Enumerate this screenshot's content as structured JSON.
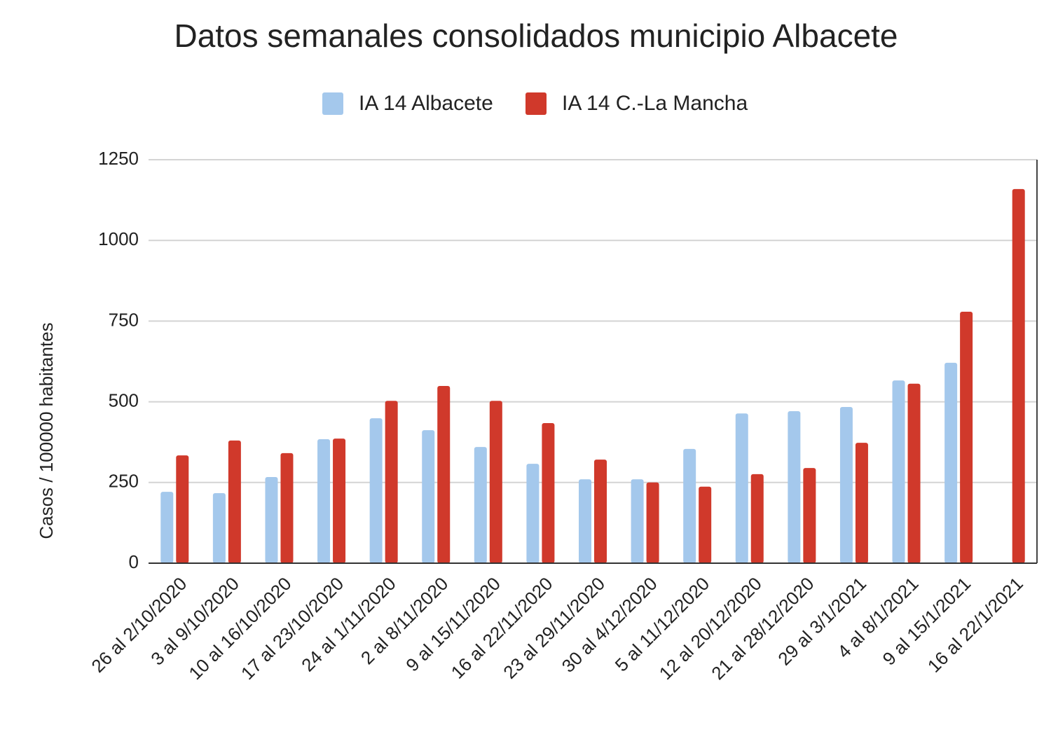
{
  "chart_data": {
    "type": "bar",
    "title": "Datos semanales consolidados municipio Albacete",
    "y_label": "Casos / 100000 habitantes",
    "categories": [
      "26 al 2/10/2020",
      "3 al 9/10/2020",
      "10 al 16/10/2020",
      "17 al 23/10/2020",
      "24 al 1/11/2020",
      "2 al 8/11/2020",
      "9 al 15/11/2020",
      "16 al 22/11/2020",
      "23 al 29/11/2020",
      "30 al 4/12/2020",
      "5 al 11/12/2020",
      "12 al 20/12/2020",
      "21 al 28/12/2020",
      "29 al 3/1/2021",
      "4 al 8/1/2021",
      "9 al 15/1/2021",
      "16 al 22/1/2021"
    ],
    "series": [
      {
        "name": "IA 14 Albacete",
        "color": "#a4c8ec",
        "values": [
          221,
          217,
          267,
          384,
          449,
          412,
          360,
          308,
          260,
          260,
          354,
          464,
          471,
          484,
          566,
          621,
          null
        ]
      },
      {
        "name": "IA 14 C.-La Mancha",
        "color": "#d0392b",
        "values": [
          334,
          380,
          341,
          386,
          503,
          549,
          503,
          434,
          321,
          250,
          237,
          276,
          295,
          373,
          556,
          779,
          1159
        ]
      }
    ],
    "ylim": [
      0,
      1250
    ],
    "yticks": [
      0,
      250,
      500,
      750,
      1000,
      1250
    ],
    "grid": true
  }
}
